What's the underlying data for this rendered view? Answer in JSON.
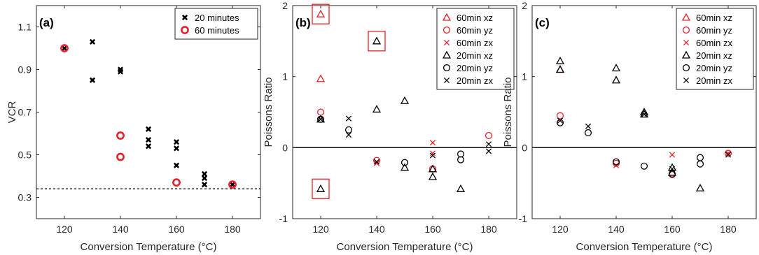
{
  "colors": {
    "red": "#e8202a",
    "black": "#000000",
    "highlight_box": "#e8202a"
  },
  "chart_data": [
    {
      "type": "scatter",
      "panel_label": "(a)",
      "xlabel": "Conversion Temperature (°C)",
      "ylabel": "VCR",
      "xlim": [
        110,
        190
      ],
      "ylim": [
        0.2,
        1.2
      ],
      "xticks": [
        120,
        140,
        160,
        180
      ],
      "yticks": [
        0.3,
        0.5,
        0.7,
        0.9,
        1.1
      ],
      "ytick_labels": [
        "0.3",
        "0.5",
        "0.7",
        "0.9",
        "1.1"
      ],
      "legend_position": "top-right",
      "reference_line": {
        "y": 0.34,
        "style": "dotted"
      },
      "series": [
        {
          "name": "20 minutes",
          "marker": "x",
          "color": "black",
          "bold": true,
          "x": [
            120,
            130,
            130,
            140,
            140,
            150,
            150,
            150,
            160,
            160,
            160,
            170,
            170,
            170,
            180
          ],
          "y": [
            1.0,
            1.03,
            0.85,
            0.9,
            0.89,
            0.62,
            0.57,
            0.54,
            0.56,
            0.53,
            0.45,
            0.41,
            0.39,
            0.36,
            0.36
          ]
        },
        {
          "name": "60 minutes",
          "marker": "o",
          "color": "red",
          "bold": true,
          "x": [
            120,
            140,
            140,
            160,
            180
          ],
          "y": [
            1.0,
            0.59,
            0.49,
            0.37,
            0.36
          ]
        }
      ]
    },
    {
      "type": "scatter",
      "panel_label": "(b)",
      "xlabel": "Conversion Temperature (°C)",
      "ylabel": "Poissons Ratio",
      "xlim": [
        110,
        190
      ],
      "ylim": [
        -1,
        2
      ],
      "xticks": [
        120,
        140,
        160,
        180
      ],
      "yticks": [
        -1,
        0,
        1,
        2
      ],
      "ytick_labels": [
        "-1",
        "0",
        "1",
        "2"
      ],
      "legend_position": "top-right",
      "zero_line": true,
      "highlight_boxes": [
        {
          "x": 120,
          "y": 1.88
        },
        {
          "x": 140,
          "y": 1.5
        },
        {
          "x": 120,
          "y": -0.58
        }
      ],
      "series": [
        {
          "name": "60min xz",
          "marker": "^",
          "color": "red",
          "x": [
            120,
            120
          ],
          "y": [
            0.97,
            1.88
          ]
        },
        {
          "name": "60min yz",
          "marker": "o",
          "color": "red",
          "x": [
            120,
            140,
            160,
            180
          ],
          "y": [
            0.5,
            -0.18,
            -0.3,
            0.17
          ]
        },
        {
          "name": "60min zx",
          "marker": "x",
          "color": "red",
          "x": [
            140,
            160,
            160
          ],
          "y": [
            -0.22,
            0.07,
            -0.08
          ]
        },
        {
          "name": "20min xz",
          "marker": "^",
          "color": "black",
          "x": [
            120,
            120,
            140,
            140,
            150,
            150,
            160,
            160,
            170
          ],
          "y": [
            0.4,
            -0.58,
            0.54,
            1.5,
            0.66,
            -0.28,
            -0.3,
            -0.41,
            -0.58
          ]
        },
        {
          "name": "20min yz",
          "marker": "o",
          "color": "black",
          "x": [
            120,
            130,
            150,
            170,
            170
          ],
          "y": [
            0.4,
            0.25,
            -0.21,
            -0.09,
            -0.17
          ]
        },
        {
          "name": "20min zx",
          "marker": "x",
          "color": "black",
          "x": [
            120,
            130,
            130,
            140,
            160,
            180,
            180
          ],
          "y": [
            0.4,
            0.41,
            0.18,
            -0.2,
            -0.11,
            0.05,
            -0.05
          ]
        }
      ]
    },
    {
      "type": "scatter",
      "panel_label": "(c)",
      "xlabel": "Conversion Temperature (°C)",
      "ylabel": "Poissons Ratio",
      "xlim": [
        110,
        190
      ],
      "ylim": [
        -1,
        2
      ],
      "xticks": [
        120,
        140,
        160,
        180
      ],
      "yticks": [
        -1,
        0,
        1,
        2
      ],
      "ytick_labels": [
        "-1",
        "0",
        "1",
        "2"
      ],
      "legend_position": "top-right",
      "zero_line": true,
      "series": [
        {
          "name": "60min xz",
          "marker": "^",
          "color": "red",
          "x": [
            120
          ],
          "y": [
            1.1
          ]
        },
        {
          "name": "60min yz",
          "marker": "o",
          "color": "red",
          "x": [
            120,
            140,
            160,
            180
          ],
          "y": [
            0.45,
            -0.22,
            -0.38,
            -0.08
          ]
        },
        {
          "name": "60min zx",
          "marker": "x",
          "color": "red",
          "x": [
            140,
            160,
            180
          ],
          "y": [
            -0.25,
            -0.1,
            -0.08
          ]
        },
        {
          "name": "20min xz",
          "marker": "^",
          "color": "black",
          "x": [
            120,
            120,
            140,
            140,
            150,
            150,
            160,
            160,
            170
          ],
          "y": [
            1.22,
            1.1,
            1.12,
            0.95,
            0.5,
            0.47,
            -0.28,
            -0.35,
            -0.57
          ]
        },
        {
          "name": "20min yz",
          "marker": "o",
          "color": "black",
          "x": [
            120,
            130,
            140,
            150,
            160,
            170,
            170
          ],
          "y": [
            0.35,
            0.21,
            -0.2,
            -0.26,
            -0.37,
            -0.14,
            -0.23
          ]
        },
        {
          "name": "20min zx",
          "marker": "x",
          "color": "black",
          "x": [
            120,
            130,
            150,
            160,
            180
          ],
          "y": [
            0.38,
            0.3,
            0.47,
            -0.3,
            -0.1
          ]
        }
      ]
    }
  ]
}
